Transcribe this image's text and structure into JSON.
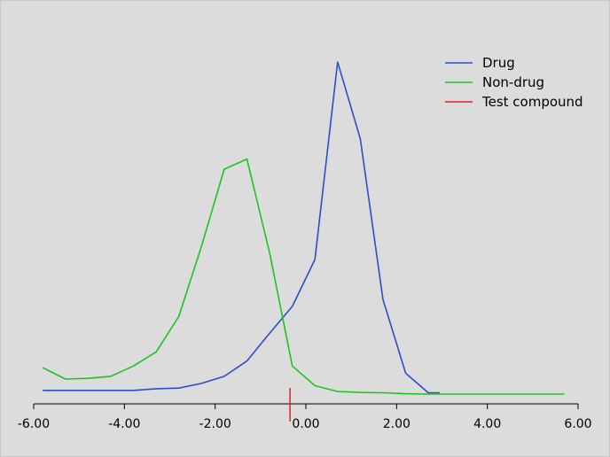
{
  "chart_data": {
    "type": "line",
    "title": "",
    "xlabel": "",
    "ylabel": "",
    "xlim": [
      -6.0,
      6.0
    ],
    "ylim": [
      0,
      100
    ],
    "grid": false,
    "legend_position": "top-right",
    "x_ticks": [
      -6.0,
      -4.0,
      -2.0,
      0.0,
      2.0,
      4.0,
      6.0
    ],
    "x_tick_labels": [
      "-6.00",
      "-4.00",
      "-2.00",
      "0.00",
      "2.00",
      "4.00",
      "6.00"
    ],
    "series": [
      {
        "name": "Drug",
        "color": "#2a4fcc",
        "points": [
          [
            -5.8,
            1.9
          ],
          [
            -5.3,
            1.9
          ],
          [
            -4.8,
            1.9
          ],
          [
            -4.3,
            1.9
          ],
          [
            -3.8,
            1.9
          ],
          [
            -3.3,
            2.4
          ],
          [
            -2.8,
            2.6
          ],
          [
            -2.3,
            4.0
          ],
          [
            -1.8,
            6.1
          ],
          [
            -1.3,
            10.7
          ],
          [
            -0.8,
            19.0
          ],
          [
            -0.3,
            27.0
          ],
          [
            0.2,
            41.0
          ],
          [
            0.7,
            100.0
          ],
          [
            1.2,
            77.0
          ],
          [
            1.7,
            29.0
          ],
          [
            2.2,
            7.0
          ],
          [
            2.7,
            1.2
          ],
          [
            2.95,
            1.2
          ]
        ]
      },
      {
        "name": "Non-drug",
        "color": "#1ec41e",
        "points": [
          [
            -5.8,
            8.7
          ],
          [
            -5.3,
            5.3
          ],
          [
            -4.8,
            5.5
          ],
          [
            -4.3,
            6.1
          ],
          [
            -3.8,
            9.2
          ],
          [
            -3.3,
            13.4
          ],
          [
            -2.8,
            24.0
          ],
          [
            -2.3,
            45.0
          ],
          [
            -1.8,
            68.0
          ],
          [
            -1.3,
            71.0
          ],
          [
            -0.8,
            43.0
          ],
          [
            -0.3,
            9.2
          ],
          [
            0.2,
            3.3
          ],
          [
            0.7,
            1.6
          ],
          [
            1.2,
            1.3
          ],
          [
            1.7,
            1.2
          ],
          [
            2.2,
            0.9
          ],
          [
            2.7,
            0.8
          ],
          [
            3.2,
            0.8
          ],
          [
            3.7,
            0.8
          ],
          [
            4.2,
            0.8
          ],
          [
            4.7,
            0.8
          ],
          [
            5.2,
            0.8
          ],
          [
            5.7,
            0.8
          ]
        ]
      }
    ],
    "markers": [
      {
        "name": "Test compound",
        "color": "#e02020",
        "x": -0.35
      }
    ]
  }
}
